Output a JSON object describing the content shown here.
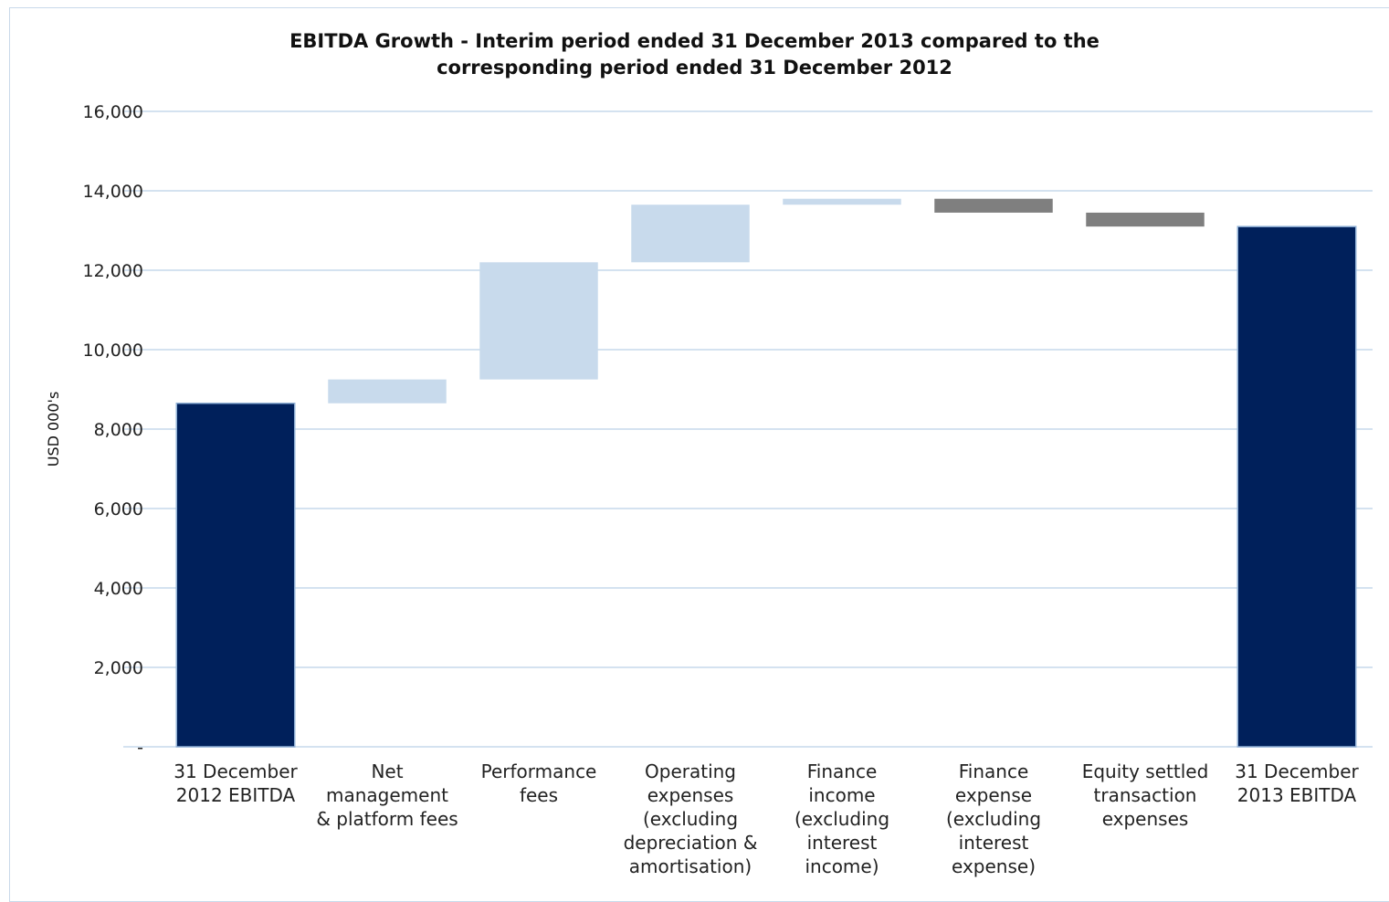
{
  "chart_data": {
    "type": "bar",
    "subtype": "waterfall",
    "title_lines": [
      "EBITDA Growth - Interim period ended 31 December 2013 compared to the",
      "corresponding period ended 31 December 2012"
    ],
    "ylabel": "USD 000's",
    "ylim": [
      0,
      16000
    ],
    "yticks": [
      0,
      2000,
      4000,
      6000,
      8000,
      10000,
      12000,
      14000,
      16000
    ],
    "ytick_labels": [
      "-",
      "2,000",
      "4,000",
      "6,000",
      "8,000",
      "10,000",
      "12,000",
      "14,000",
      "16,000"
    ],
    "grid": true,
    "legend": "none",
    "categories": [
      [
        "31 December",
        "2012 EBITDA"
      ],
      [
        "Net",
        "management",
        "& platform fees"
      ],
      [
        "Performance",
        "fees"
      ],
      [
        "Operating",
        "expenses",
        "(excluding",
        "depreciation &",
        "amortisation)"
      ],
      [
        "Finance",
        "income",
        "(excluding",
        "interest",
        "income)"
      ],
      [
        "Finance",
        "expense",
        "(excluding",
        "interest",
        "expense)"
      ],
      [
        "Equity settled",
        "transaction",
        "expenses"
      ],
      [
        "31 December",
        "2013 EBITDA"
      ]
    ],
    "bars": [
      {
        "kind": "total",
        "bottom": 0,
        "top": 8650
      },
      {
        "kind": "increase",
        "bottom": 8650,
        "top": 9250
      },
      {
        "kind": "increase",
        "bottom": 9250,
        "top": 12200
      },
      {
        "kind": "increase",
        "bottom": 12200,
        "top": 13650
      },
      {
        "kind": "increase",
        "bottom": 13650,
        "top": 13800
      },
      {
        "kind": "decrease",
        "bottom": 13450,
        "top": 13800
      },
      {
        "kind": "decrease",
        "bottom": 13100,
        "top": 13450
      },
      {
        "kind": "total",
        "bottom": 0,
        "top": 13100
      }
    ],
    "colors": {
      "total": "#00205b",
      "increase": "#c8daec",
      "decrease": "#7f7f7f",
      "grid": "#c5d8ec"
    }
  }
}
